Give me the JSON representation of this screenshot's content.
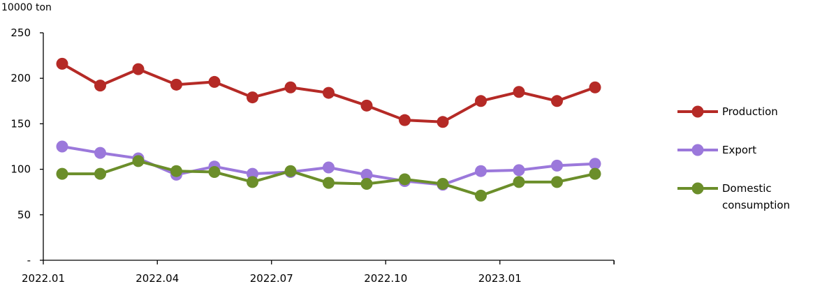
{
  "chart_data": {
    "type": "line",
    "unit_label": "10000 ton",
    "ylim": [
      0,
      250
    ],
    "y_ticks": [
      {
        "value": 0,
        "label": "-"
      },
      {
        "value": 50,
        "label": "50"
      },
      {
        "value": 100,
        "label": "100"
      },
      {
        "value": 150,
        "label": "150"
      },
      {
        "value": 200,
        "label": "200"
      },
      {
        "value": 250,
        "label": "250"
      }
    ],
    "x": [
      "2022.01",
      "2022.02",
      "2022.03",
      "2022.04",
      "2022.05",
      "2022.06",
      "2022.07",
      "2022.08",
      "2022.09",
      "2022.10",
      "2022.11",
      "2022.12",
      "2023.01",
      "2023.02",
      "2023.03"
    ],
    "x_tick_labels": [
      "2022.01",
      "2022.04",
      "2022.07",
      "2022.10",
      "2023.01"
    ],
    "grid": false,
    "legend_position": "right",
    "series": [
      {
        "name": "Production",
        "color": "#b52a26",
        "values": [
          216,
          192,
          210,
          193,
          196,
          179,
          190,
          184,
          170,
          154,
          152,
          175,
          185,
          175,
          190
        ]
      },
      {
        "name": "Export",
        "color": "#9b78db",
        "values": [
          125,
          118,
          112,
          94,
          103,
          95,
          97,
          102,
          94,
          87,
          83,
          98,
          99,
          104,
          106
        ]
      },
      {
        "name": "Domestic consumption",
        "color": "#6b8e2a",
        "values": [
          95,
          95,
          109,
          98,
          97,
          86,
          98,
          85,
          84,
          89,
          84,
          71,
          86,
          86,
          95
        ]
      }
    ]
  }
}
